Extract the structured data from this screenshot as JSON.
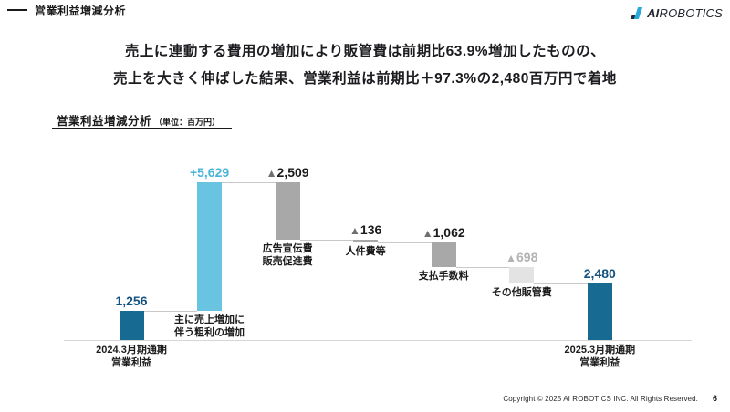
{
  "header": {
    "section_label": "営業利益増減分析",
    "logo": {
      "ai": "AI",
      "robotics": "ROBOTICS"
    }
  },
  "title": {
    "line1": "売上に連動する費用の増加により販管費は前期比63.9%増加したものの、",
    "line2": "売上を大きく伸ばした結果、営業利益は前期比＋97.3%の2,480百万円で着地"
  },
  "chart_header": {
    "title": "営業利益増減分析",
    "unit": "（単位：百万円）"
  },
  "chart_data": {
    "type": "bar",
    "subtype": "waterfall",
    "title": "営業利益増減分析",
    "unit": "百万円",
    "start_total": 1256,
    "end_total": 2480,
    "ylim": [
      0,
      7100
    ],
    "grid": false,
    "legend": false,
    "steps": [
      {
        "id": "fy2024-op",
        "role": "start",
        "delta": 1256,
        "category_lines": [
          "2024.3月期通期",
          "営業利益"
        ],
        "label_pos": "axis",
        "value_prefix": "",
        "value_text": "1,256",
        "bar_color": "#176a92",
        "prefix_color": "#15517d",
        "value_color": "#15517d"
      },
      {
        "id": "gross-profit-increase",
        "role": "increase",
        "delta": 5629,
        "category_lines": [
          "主に売上増加に",
          "伴う粗利の増加"
        ],
        "label_pos": "bar",
        "value_prefix": "",
        "value_text": "+5,629",
        "bar_color": "#69c4e1",
        "prefix_color": "#48b3d9",
        "value_color": "#48b3d9"
      },
      {
        "id": "ad-promo-expense",
        "role": "decrease",
        "delta": -2509,
        "category_lines": [
          "広告宣伝費",
          "販売促進費"
        ],
        "label_pos": "bar",
        "value_prefix": "▲",
        "value_text": "2,509",
        "bar_color": "#a8a8a8",
        "prefix_color": "#6f6f6f",
        "value_color": "#1b1b1b"
      },
      {
        "id": "personnel-expense",
        "role": "decrease",
        "delta": -136,
        "category_lines": [
          "人件費等"
        ],
        "label_pos": "bar",
        "value_prefix": "▲",
        "value_text": "136",
        "bar_color": "#a8a8a8",
        "prefix_color": "#6f6f6f",
        "value_color": "#1b1b1b"
      },
      {
        "id": "payment-fees",
        "role": "decrease",
        "delta": -1062,
        "category_lines": [
          "支払手数料"
        ],
        "label_pos": "bar",
        "value_prefix": "▲",
        "value_text": "1,062",
        "bar_color": "#a8a8a8",
        "prefix_color": "#6f6f6f",
        "value_color": "#1b1b1b"
      },
      {
        "id": "other-sga",
        "role": "decrease",
        "delta": -698,
        "category_lines": [
          "その他販管費"
        ],
        "label_pos": "bar",
        "value_prefix": "▲",
        "value_text": "698",
        "bar_color": "#e3e3e3",
        "prefix_color": "#b3b3b3",
        "value_color": "#b3b3b3"
      },
      {
        "id": "fy2025-op",
        "role": "end",
        "delta": 2480,
        "category_lines": [
          "2025.3月期通期",
          "営業利益"
        ],
        "label_pos": "axis",
        "value_prefix": "",
        "value_text": "2,480",
        "bar_color": "#176a92",
        "prefix_color": "#15517d",
        "value_color": "#15517d"
      }
    ]
  },
  "footer": {
    "copyright": "Copyright © 2025 AI ROBOTICS INC. All Rights Reserved.",
    "page": "6"
  }
}
